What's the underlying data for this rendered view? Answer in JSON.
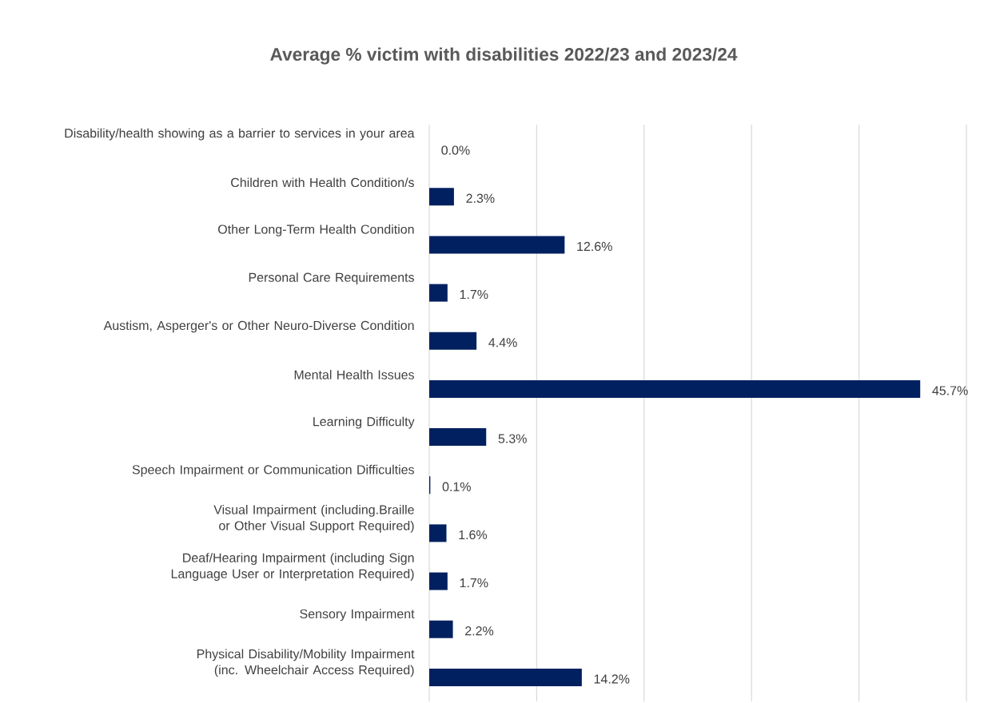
{
  "chart_data": {
    "type": "bar",
    "orientation": "horizontal",
    "title": "Average % victim with disabilities 2022/23 and 2023/24",
    "categories": [
      "Disability/health showing as a barrier to services in your area",
      "Children with Health Condition/s",
      "Other Long-Term Health Condition",
      "Personal Care Requirements",
      "Austism, Asperger's or Other Neuro-Diverse Condition",
      "Mental Health Issues",
      "Learning Difficulty",
      "Speech Impairment or Communication Difficulties",
      "Visual Impairment (including.Braille or Other Visual Support Required)",
      "Deaf/Hearing Impairment (including Sign Language User or Interpretation Required)",
      "Sensory Impairment",
      "Physical Disability/Mobility Impairment (inc. Wheelchair Access Required)"
    ],
    "values": [
      0.0,
      2.3,
      12.6,
      1.7,
      4.4,
      45.7,
      5.3,
      0.1,
      1.6,
      1.7,
      2.2,
      14.2
    ],
    "value_labels": [
      "0.0%",
      "2.3%",
      "12.6%",
      "1.7%",
      "4.4%",
      "45.7%",
      "5.3%",
      "0.1%",
      "1.6%",
      "1.7%",
      "2.2%",
      "14.2%"
    ],
    "color": "#002060",
    "xlim": [
      0,
      50
    ],
    "xticks": [
      {
        "value": 0,
        "label": null
      },
      {
        "value": 10,
        "label": null
      },
      {
        "value": 20,
        "label": null
      },
      {
        "value": 30,
        "label": null
      },
      {
        "value": 40,
        "label": null
      },
      {
        "value": 50,
        "label": null
      }
    ],
    "grid": "x",
    "tick_labels": "y"
  }
}
